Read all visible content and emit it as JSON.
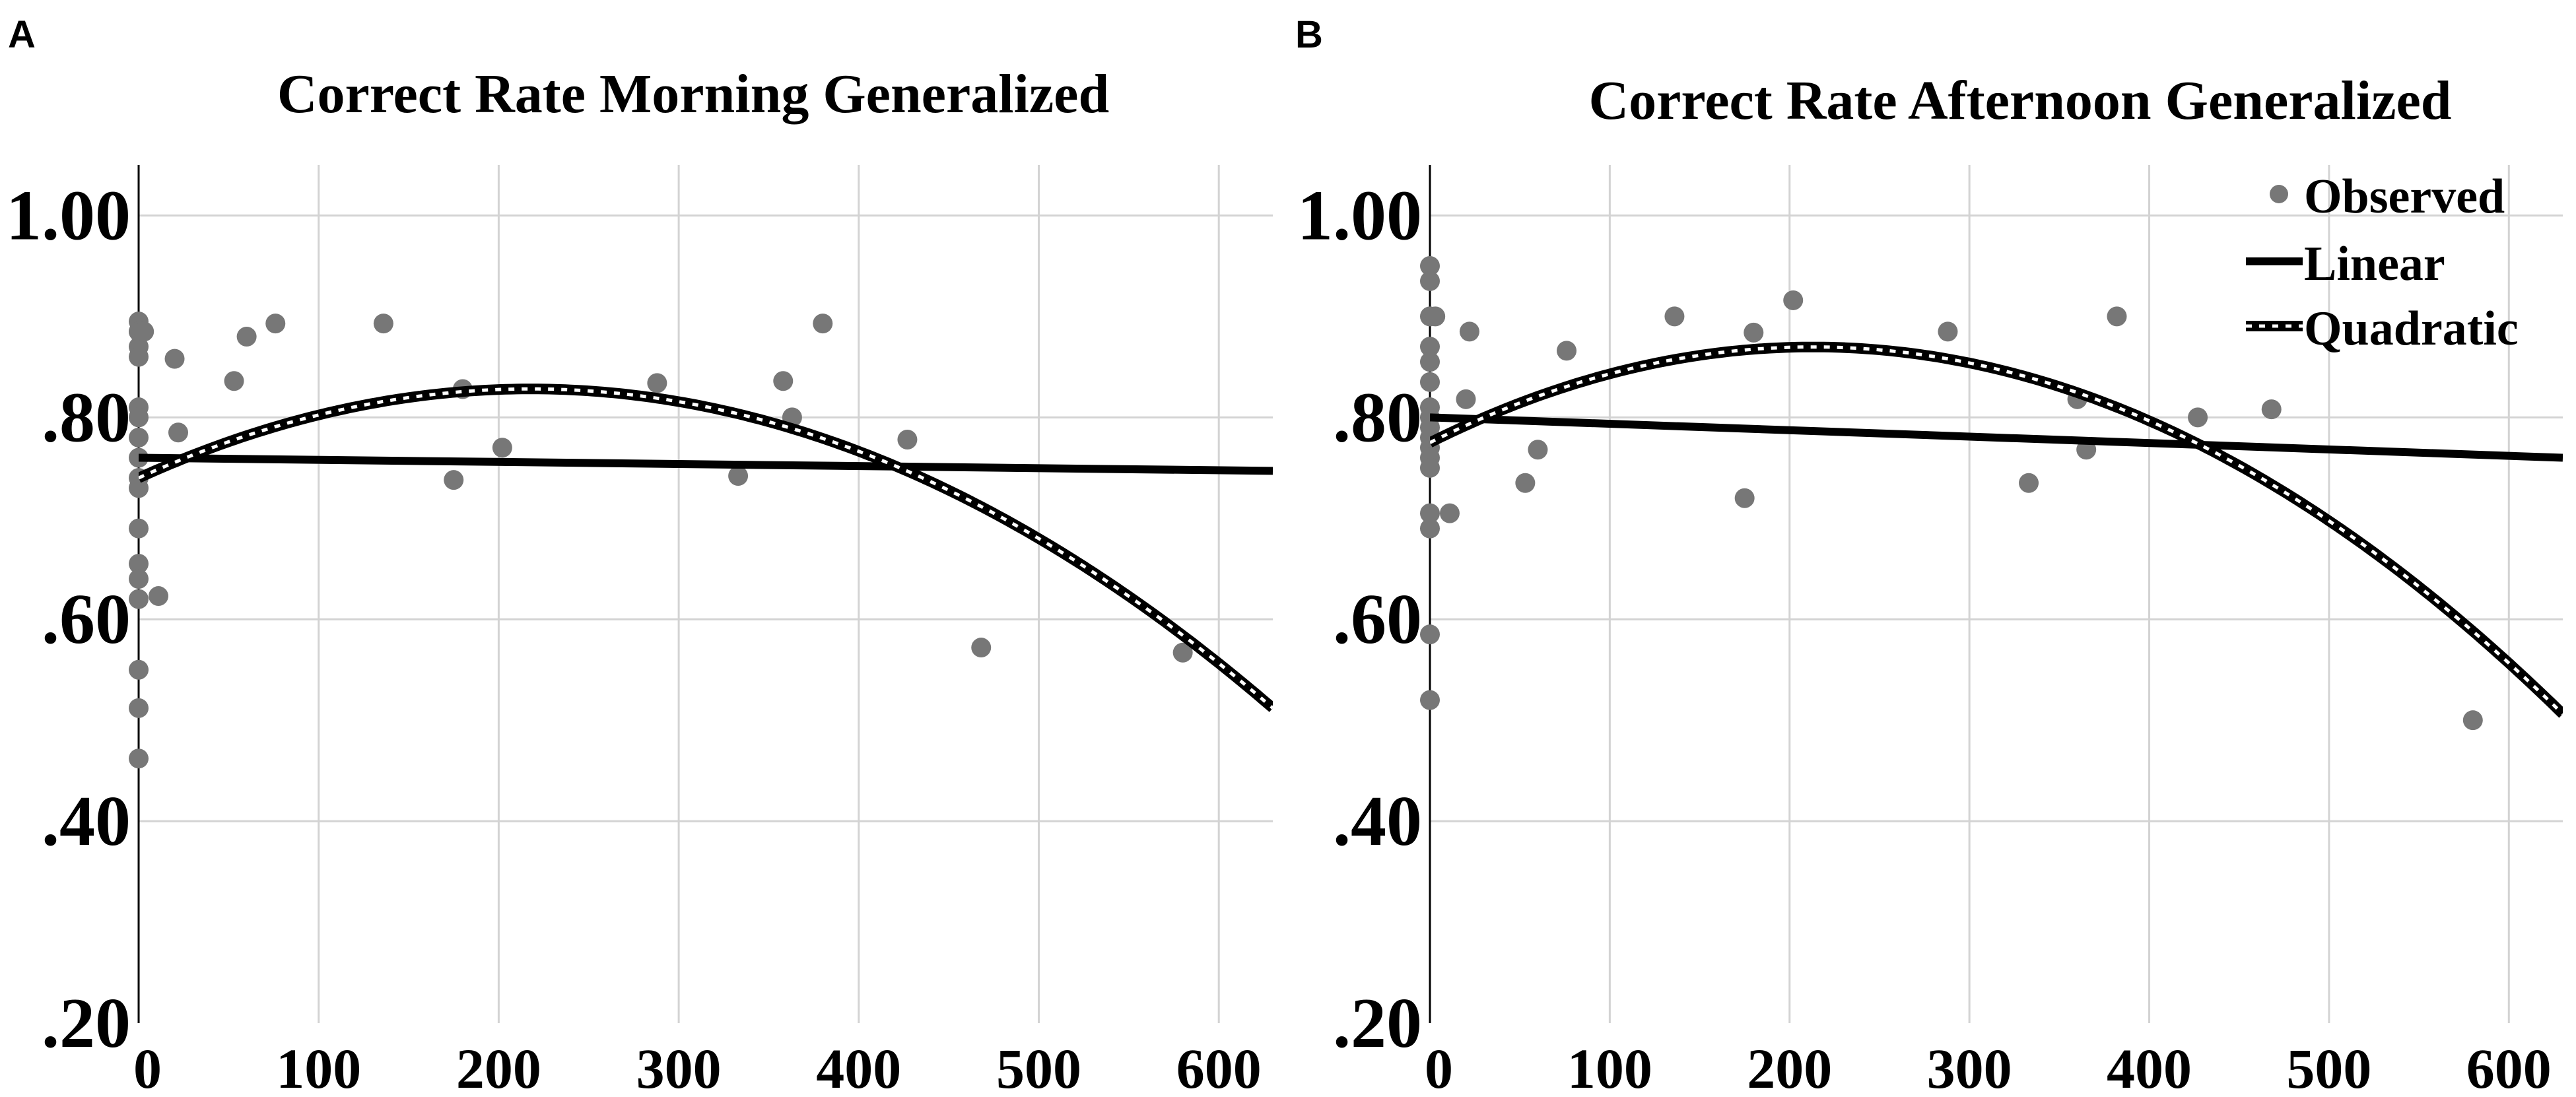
{
  "colors": {
    "point": "#777777",
    "line": "#000000",
    "grid": "#d3d3d3"
  },
  "chart_data": [
    {
      "panel": "A",
      "type": "scatter",
      "title": "Correct Rate Morning Generalized",
      "xlabel": "",
      "ylabel": "",
      "xlim": [
        0,
        630
      ],
      "ylim": [
        0.2,
        1.05
      ],
      "x_ticks": [
        0,
        100,
        200,
        300,
        400,
        500,
        600
      ],
      "x_tick_labels": [
        "0",
        "100",
        "200",
        "300",
        "400",
        "500",
        "600"
      ],
      "y_ticks": [
        0.2,
        0.4,
        0.6,
        0.8,
        1.0
      ],
      "y_tick_labels": [
        ".20",
        ".40",
        ".60",
        ".80",
        "1.00"
      ],
      "grid": true,
      "legend": null,
      "series": [
        {
          "name": "Observed",
          "kind": "scatter",
          "x": [
            0,
            0,
            0,
            0,
            0,
            0,
            0,
            0,
            0,
            0,
            0,
            0,
            0,
            0,
            0,
            0,
            0,
            0,
            3,
            11,
            20,
            22,
            53,
            60,
            76,
            136,
            175,
            180,
            202,
            288,
            333,
            358,
            363,
            380,
            427,
            468,
            580
          ],
          "y": [
            0.895,
            0.885,
            0.87,
            0.86,
            0.81,
            0.8,
            0.78,
            0.76,
            0.74,
            0.73,
            0.69,
            0.655,
            0.64,
            0.62,
            0.55,
            0.512,
            0.462,
            0.885,
            0.885,
            0.623,
            0.858,
            0.785,
            0.836,
            0.88,
            0.893,
            0.893,
            0.738,
            0.828,
            0.77,
            0.834,
            0.742,
            0.836,
            0.8,
            0.893,
            0.778,
            0.572,
            0.567
          ]
        },
        {
          "name": "Linear",
          "kind": "line",
          "x": [
            0,
            630
          ],
          "y": [
            0.76,
            0.747
          ]
        },
        {
          "name": "Quadratic",
          "kind": "quadratic",
          "coefficients": {
            "a": -1.86e-06,
            "b": 0.00081,
            "c": 0.74
          }
        }
      ]
    },
    {
      "panel": "B",
      "type": "scatter",
      "title": "Correct Rate Afternoon Generalized",
      "xlabel": "",
      "ylabel": "",
      "xlim": [
        0,
        630
      ],
      "ylim": [
        0.2,
        1.05
      ],
      "x_ticks": [
        0,
        100,
        200,
        300,
        400,
        500,
        600
      ],
      "x_tick_labels": [
        "0",
        "100",
        "200",
        "300",
        "400",
        "500",
        "600"
      ],
      "y_ticks": [
        0.2,
        0.4,
        0.6,
        0.8,
        1.0
      ],
      "y_tick_labels": [
        ".20",
        ".40",
        ".60",
        ".80",
        "1.00"
      ],
      "grid": true,
      "legend": {
        "position": "top-right",
        "entries": [
          "Observed",
          "Linear",
          "Quadratic"
        ]
      },
      "series": [
        {
          "name": "Observed",
          "kind": "scatter",
          "x": [
            0,
            0,
            0,
            0,
            0,
            0,
            0,
            0,
            0,
            0,
            0,
            0,
            0,
            0,
            0,
            0,
            0,
            3,
            11,
            20,
            22,
            53,
            60,
            76,
            136,
            175,
            180,
            202,
            288,
            333,
            360,
            365,
            382,
            427,
            468,
            580
          ],
          "y": [
            0.95,
            0.935,
            0.87,
            0.855,
            0.835,
            0.81,
            0.8,
            0.79,
            0.78,
            0.77,
            0.76,
            0.75,
            0.705,
            0.69,
            0.585,
            0.52,
            0.9,
            0.9,
            0.705,
            0.818,
            0.885,
            0.735,
            0.768,
            0.866,
            0.9,
            0.72,
            0.884,
            0.916,
            0.885,
            0.735,
            0.818,
            0.768,
            0.9,
            0.8,
            0.808,
            0.5
          ]
        },
        {
          "name": "Linear",
          "kind": "line",
          "x": [
            0,
            630
          ],
          "y": [
            0.8,
            0.76
          ]
        },
        {
          "name": "Quadratic",
          "kind": "quadratic",
          "coefficients": {
            "a": -2.09e-06,
            "b": 0.00089,
            "c": 0.775
          }
        }
      ]
    }
  ]
}
